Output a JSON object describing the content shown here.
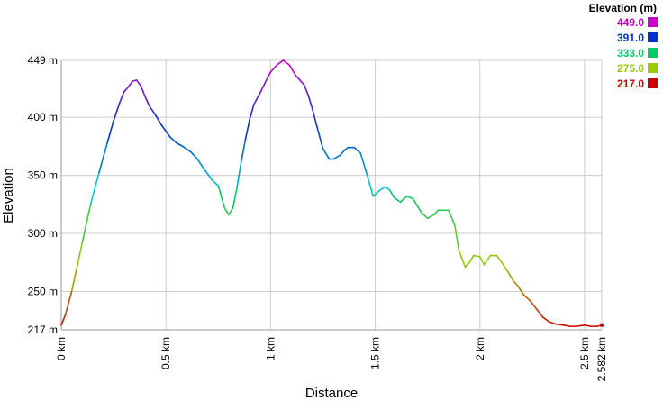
{
  "chart_data": {
    "type": "line",
    "xlabel": "Distance",
    "ylabel": "Elevation",
    "xlim": [
      0,
      2.582
    ],
    "ylim": [
      217,
      449
    ],
    "grid": true,
    "x_ticks": [
      {
        "value": 0,
        "label": "0 km"
      },
      {
        "value": 0.5,
        "label": "0.5 km"
      },
      {
        "value": 1,
        "label": "1 km"
      },
      {
        "value": 1.5,
        "label": "1.5 km"
      },
      {
        "value": 2,
        "label": "2 km"
      },
      {
        "value": 2.5,
        "label": "2.5 km"
      },
      {
        "value": 2.582,
        "label": "2.582 km"
      }
    ],
    "y_ticks": [
      {
        "value": 217,
        "label": "217 m"
      },
      {
        "value": 250,
        "label": "250 m"
      },
      {
        "value": 300,
        "label": "300 m"
      },
      {
        "value": 350,
        "label": "350 m"
      },
      {
        "value": 400,
        "label": "400 m"
      },
      {
        "value": 449,
        "label": "449 m"
      }
    ],
    "legend": {
      "title": "Elevation (m)",
      "placement": "top-right",
      "entries": [
        {
          "label": "449.0",
          "color": "#cc00cc"
        },
        {
          "label": "391.0",
          "color": "#0033cc"
        },
        {
          "label": "333.0",
          "color": "#00cc66"
        },
        {
          "label": "275.0",
          "color": "#99cc00"
        },
        {
          "label": "217.0",
          "color": "#cc0000"
        }
      ]
    },
    "series": [
      {
        "x": [
          0,
          0.02,
          0.05,
          0.08,
          0.1,
          0.14,
          0.18,
          0.22,
          0.25,
          0.28,
          0.3,
          0.32,
          0.34,
          0.36,
          0.38,
          0.4,
          0.42,
          0.45,
          0.48,
          0.52,
          0.55,
          0.58,
          0.62,
          0.65,
          0.68,
          0.72,
          0.75,
          0.78,
          0.8,
          0.82,
          0.84,
          0.86,
          0.88,
          0.9,
          0.92,
          0.95,
          0.98,
          1.0,
          1.03,
          1.06,
          1.09,
          1.12,
          1.14,
          1.16,
          1.18,
          1.2,
          1.22,
          1.25,
          1.28,
          1.3,
          1.33,
          1.35,
          1.37,
          1.4,
          1.43,
          1.46,
          1.49,
          1.52,
          1.55,
          1.57,
          1.59,
          1.62,
          1.65,
          1.68,
          1.7,
          1.72,
          1.75,
          1.78,
          1.8,
          1.82,
          1.85,
          1.88,
          1.9,
          1.93,
          1.95,
          1.97,
          2.0,
          2.02,
          2.05,
          2.08,
          2.1,
          2.13,
          2.16,
          2.18,
          2.21,
          2.24,
          2.27,
          2.3,
          2.33,
          2.36,
          2.4,
          2.43,
          2.46,
          2.5,
          2.53,
          2.56,
          2.582
        ],
        "y": [
          221,
          230,
          250,
          275,
          292,
          325,
          352,
          378,
          397,
          413,
          422,
          426,
          431,
          432,
          427,
          418,
          410,
          402,
          393,
          383,
          378,
          375,
          370,
          364,
          356,
          346,
          341,
          322,
          316,
          322,
          340,
          362,
          381,
          398,
          411,
          421,
          432,
          439,
          445,
          449,
          445,
          436,
          432,
          428,
          419,
          407,
          393,
          373,
          364,
          364,
          367,
          371,
          374,
          374,
          369,
          351,
          332,
          337,
          340,
          337,
          331,
          327,
          332,
          330,
          324,
          318,
          313,
          316,
          320,
          320,
          320,
          307,
          285,
          271,
          275,
          281,
          280,
          273,
          281,
          281,
          276,
          268,
          259,
          255,
          247,
          242,
          235,
          228,
          224,
          222,
          221,
          220,
          220,
          221,
          220,
          220,
          221
        ]
      }
    ]
  }
}
